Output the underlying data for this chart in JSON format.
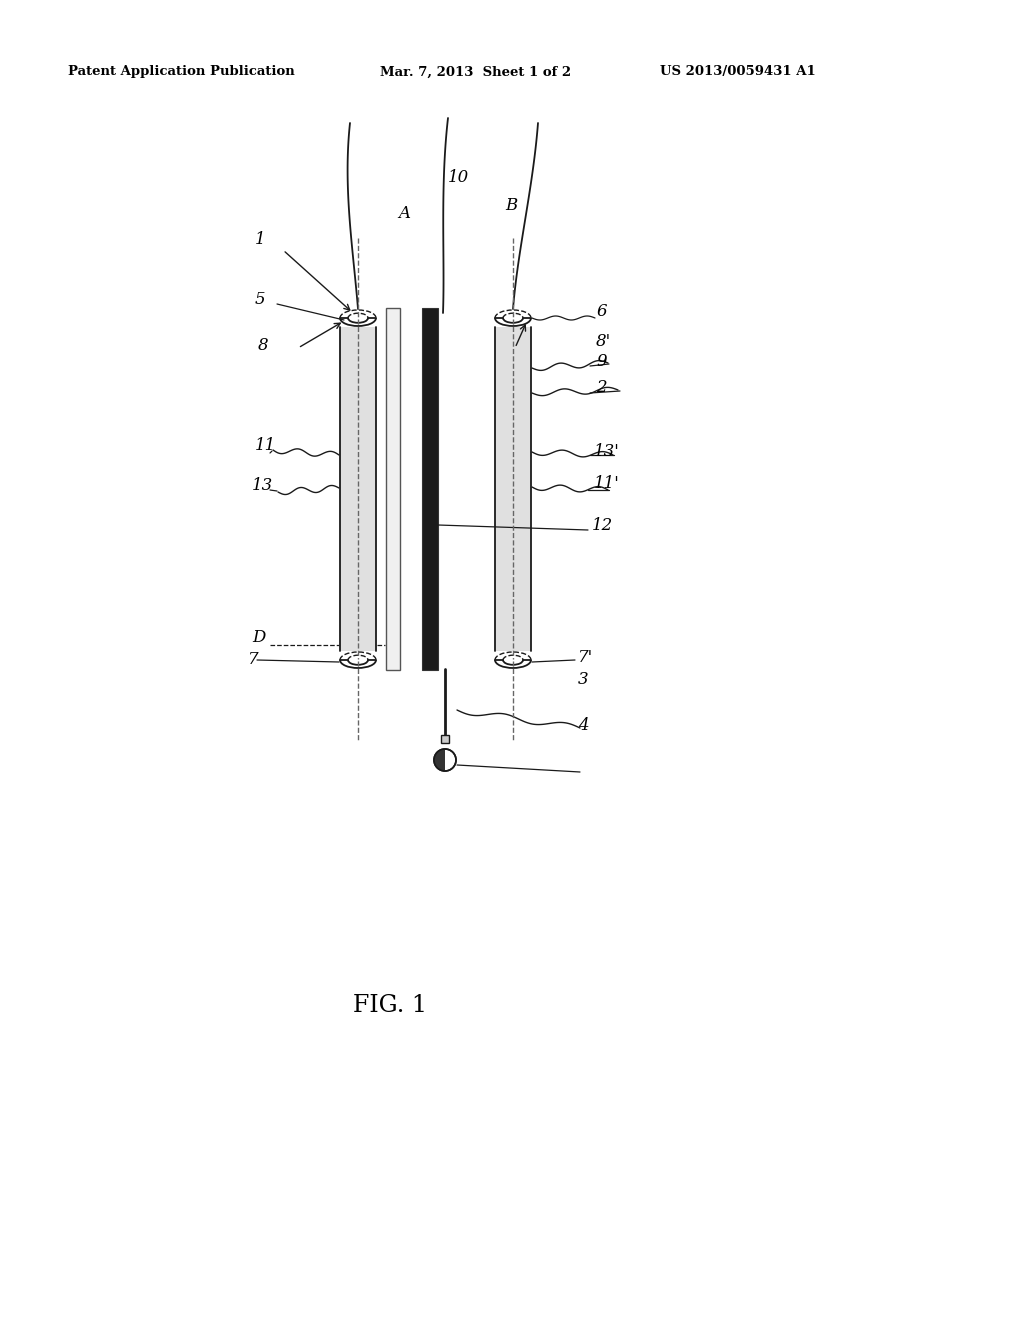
{
  "bg_color": "#ffffff",
  "header_left": "Patent Application Publication",
  "header_mid": "Mar. 7, 2013  Sheet 1 of 2",
  "header_right": "US 2013/0059431 A1",
  "fig_label": "FIG. 1",
  "line_color": "#1a1a1a",
  "dashed_color": "#555555"
}
